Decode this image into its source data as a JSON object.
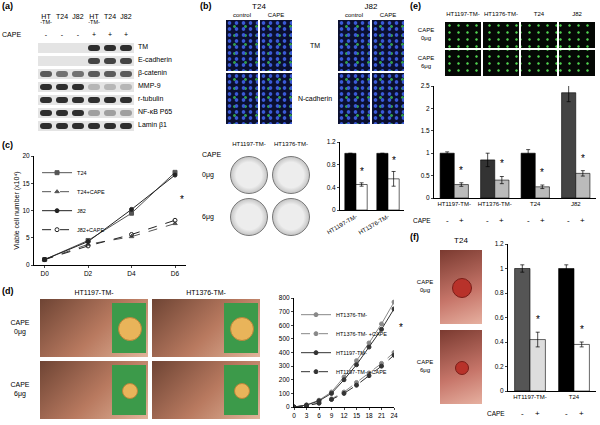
{
  "panel_labels": [
    "(a)",
    "(b)",
    "(c)",
    "(d)",
    "(e)",
    "(f)"
  ],
  "blot": {
    "cell_lines": [
      {
        "name": "HT",
        "suffix": "-TM-"
      },
      {
        "name": "T24"
      },
      {
        "name": "J82"
      },
      {
        "name": "HT",
        "suffix": "-TM-"
      },
      {
        "name": "T24"
      },
      {
        "name": "J82"
      }
    ],
    "treatment": "CAPE",
    "signs": [
      "-",
      "-",
      "-",
      "+",
      "+",
      "+"
    ],
    "rows": [
      {
        "label": "TM",
        "bands": [
          0,
          0,
          0,
          0.8,
          0.8,
          0.8
        ]
      },
      {
        "label": "E-cadherin",
        "bands": [
          0,
          0,
          0,
          0.7,
          0.7,
          0.7
        ]
      },
      {
        "label": "β-catenin",
        "bands": [
          0.6,
          0.5,
          0.5,
          0.6,
          0.6,
          0.6
        ]
      },
      {
        "label": "MMP-9",
        "bands": [
          0.8,
          0.8,
          0.8,
          0.2,
          0.2,
          0.2
        ]
      },
      {
        "label": "r-tubulin",
        "bands": [
          0.8,
          0.8,
          0.8,
          0.8,
          0.8,
          0.8
        ]
      },
      {
        "label": "NF-κB P65",
        "bands": [
          0.8,
          0.8,
          0.8,
          0.3,
          0.3,
          0.3
        ]
      },
      {
        "label": "Lamin β1",
        "bands": [
          0.8,
          0.8,
          0.8,
          0.8,
          0.8,
          0.8
        ]
      }
    ]
  },
  "if_images": {
    "cells": [
      "T24",
      "J82"
    ],
    "columns": [
      "control",
      "CAPE"
    ],
    "rows": [
      "TM",
      "N-cadherin"
    ]
  },
  "colony": {
    "treatment": "CAPE",
    "groups": [
      "HT1197-TM-",
      "HT1376-TM-"
    ],
    "doses": [
      "0μg",
      "6μg"
    ]
  },
  "xenograft": {
    "treatment": "CAPE",
    "groups": [
      "HT1197-TM-",
      "HT1376-TM-"
    ],
    "doses": [
      "0μg",
      "6μg"
    ]
  },
  "invasion_images": {
    "treatment": "CAPE",
    "groups": [
      "HT1197-TM-",
      "HT1376-TM-",
      "T24",
      "J82"
    ],
    "doses": [
      "0μg",
      "6μg"
    ]
  },
  "metastasis": {
    "treatment": "CAPE",
    "group": "T24",
    "doses": [
      "0μg",
      "6μg"
    ]
  },
  "chart_data": [
    {
      "type": "line",
      "y_label": "Viable cell number (x10⁴)",
      "categories": [
        "D0",
        "D2",
        "D4",
        "D6"
      ],
      "ylim": [
        0,
        20
      ],
      "yticks": [
        0,
        5,
        10,
        15,
        20
      ],
      "legend": "upper left",
      "series": [
        {
          "name": "T24",
          "color": "#555555",
          "marker": "square",
          "line_style": "solid",
          "values": [
            1,
            4.5,
            9.5,
            17
          ]
        },
        {
          "name": "T24+CAPE",
          "color": "#555555",
          "marker": "triangle-up",
          "line_style": "dash",
          "values": [
            1,
            3.8,
            5.2,
            7.6
          ]
        },
        {
          "name": "J82",
          "color": "#222222",
          "marker": "circle",
          "line_style": "solid",
          "values": [
            1,
            4.3,
            10.2,
            16.5
          ]
        },
        {
          "name": "J82+CAPE",
          "color": "#222222",
          "marker": "circle-open",
          "line_style": "dash",
          "values": [
            1,
            3.5,
            5.6,
            8.2
          ]
        }
      ],
      "annotations": [
        {
          "text": "*",
          "x": 3,
          "y": 12
        }
      ]
    },
    {
      "type": "bar",
      "categories": [
        "HT1197-TM-",
        "HT1376-TM-"
      ],
      "ylim": [
        0,
        1.2
      ],
      "yticks": [
        0,
        0.4,
        0.8,
        1.2
      ],
      "series": [
        {
          "color": "#000000",
          "values": [
            1,
            1
          ],
          "error": [
            0,
            0
          ]
        },
        {
          "color": "#ffffff",
          "values": [
            0.45,
            0.55
          ],
          "error": [
            0.03,
            0.13
          ]
        }
      ],
      "annotations": [
        {
          "text": "*",
          "x": 0,
          "y": 0.54,
          "series": 1
        },
        {
          "text": "*",
          "x": 1,
          "y": 0.74,
          "series": 1
        }
      ]
    },
    {
      "type": "line",
      "x": [
        0,
        3,
        6,
        9,
        12,
        15,
        18,
        21,
        24
      ],
      "xlim": [
        0,
        24
      ],
      "xticks": [
        0,
        3,
        6,
        9,
        12,
        15,
        18,
        21,
        24
      ],
      "ylim": [
        0,
        800
      ],
      "yticks": [
        0,
        100,
        200,
        300,
        400,
        500,
        600,
        700,
        800
      ],
      "legend": "upper left",
      "series": [
        {
          "name": "HT1376-TM-",
          "color": "#888888",
          "marker": "circle",
          "line_style": "solid",
          "values": [
            0,
            15,
            50,
            110,
            220,
            340,
            470,
            610,
            770
          ]
        },
        {
          "name": "HT1376-TM- +CAPE",
          "color": "#888888",
          "marker": "circle",
          "line_style": "dash",
          "values": [
            0,
            10,
            30,
            60,
            110,
            180,
            250,
            320,
            400
          ]
        },
        {
          "name": "HT1197-TM-",
          "color": "#333333",
          "marker": "circle",
          "line_style": "solid",
          "values": [
            0,
            14,
            45,
            100,
            200,
            310,
            440,
            570,
            720
          ]
        },
        {
          "name": "HT1197-TM- +CAPE",
          "color": "#333333",
          "marker": "circle",
          "line_style": "dash",
          "values": [
            0,
            9,
            28,
            55,
            100,
            160,
            230,
            300,
            380
          ]
        }
      ],
      "annotations": [
        {
          "text": "*",
          "x": 24,
          "y": 580
        }
      ]
    },
    {
      "type": "bar",
      "categories": [
        "HT1197-TM-",
        "HT1376-TM-",
        "T24",
        "J82"
      ],
      "treatment": "CAPE",
      "signs": [
        "-",
        "+"
      ],
      "ylim": [
        0,
        2.5
      ],
      "yticks": [
        0,
        0.5,
        1,
        1.5,
        2,
        2.5
      ],
      "series": [
        {
          "colors": [
            "#000000",
            "#333333",
            "#000000",
            "#444444"
          ],
          "values": [
            1,
            0.85,
            1,
            2.35
          ],
          "error": [
            0.03,
            0.15,
            0.08,
            0.2
          ]
        },
        {
          "colors": [
            "#bbbbbb",
            "#bbbbbb",
            "#bbbbbb",
            "#bbbbbb"
          ],
          "values": [
            0.3,
            0.4,
            0.25,
            0.55
          ],
          "error": [
            0.04,
            0.08,
            0.04,
            0.06
          ]
        }
      ],
      "annotations": [
        {
          "text": "*",
          "x": 0,
          "y": 0.45,
          "series": 1
        },
        {
          "text": "*",
          "x": 1,
          "y": 0.6,
          "series": 1
        },
        {
          "text": "*",
          "x": 2,
          "y": 0.4,
          "series": 1
        },
        {
          "text": "*",
          "x": 3,
          "y": 0.72,
          "series": 1
        }
      ]
    },
    {
      "type": "bar",
      "categories": [
        "HT1197-TM-",
        "T24"
      ],
      "treatment": "CAPE",
      "signs": [
        "-",
        "+"
      ],
      "ylim": [
        0,
        1.2
      ],
      "yticks": [
        0,
        0.2,
        0.4,
        0.6,
        0.8,
        1,
        1.2
      ],
      "series": [
        {
          "colors": [
            "#555555",
            "#000000"
          ],
          "values": [
            1,
            1
          ],
          "error": [
            0.03,
            0.03
          ]
        },
        {
          "colors": [
            "#dddddd",
            "#ffffff"
          ],
          "values": [
            0.42,
            0.38
          ],
          "error": [
            0.06,
            0.02
          ]
        }
      ],
      "annotations": [
        {
          "text": "*",
          "x": 0,
          "y": 0.52,
          "series": 1
        },
        {
          "text": "*",
          "x": 1,
          "y": 0.44,
          "series": 1
        }
      ]
    }
  ]
}
